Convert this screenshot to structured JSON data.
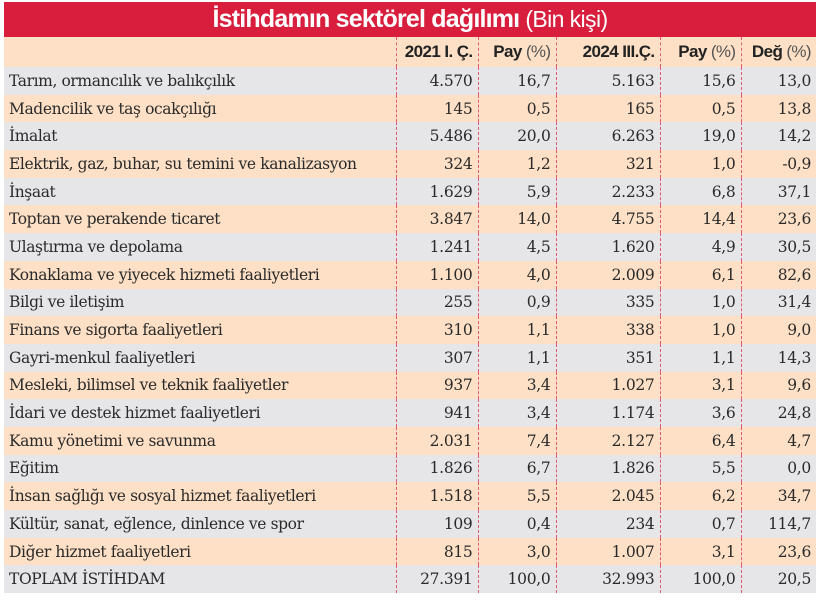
{
  "title": {
    "main": "İstihdamın sektörel dağılımı",
    "unit": "(Bin kişi)"
  },
  "headers": [
    {
      "bold": "2021 I. Ç.",
      "normal": ""
    },
    {
      "bold": "Pay",
      "normal": "(%)"
    },
    {
      "bold": "2024 III.Ç.",
      "normal": ""
    },
    {
      "bold": "Pay",
      "normal": "(%)"
    },
    {
      "bold": "Değ",
      "normal": "(%)"
    }
  ],
  "rows": [
    {
      "sector": "Tarım, ormancılık ve balıkçılık",
      "v2021": "4.570",
      "pay2021": "16,7",
      "v2024": "5.163",
      "pay2024": "15,6",
      "deg": "13,0"
    },
    {
      "sector": "Madencilik ve taş ocakçılığı",
      "v2021": "145",
      "pay2021": "0,5",
      "v2024": "165",
      "pay2024": "0,5",
      "deg": "13,8"
    },
    {
      "sector": "İmalat",
      "v2021": "5.486",
      "pay2021": "20,0",
      "v2024": "6.263",
      "pay2024": "19,0",
      "deg": "14,2"
    },
    {
      "sector": "Elektrik, gaz, buhar, su temini ve kanalizasyon",
      "v2021": "324",
      "pay2021": "1,2",
      "v2024": "321",
      "pay2024": "1,0",
      "deg": "-0,9"
    },
    {
      "sector": "İnşaat",
      "v2021": "1.629",
      "pay2021": "5,9",
      "v2024": "2.233",
      "pay2024": "6,8",
      "deg": "37,1"
    },
    {
      "sector": "Toptan ve perakende ticaret",
      "v2021": "3.847",
      "pay2021": "14,0",
      "v2024": "4.755",
      "pay2024": "14,4",
      "deg": "23,6"
    },
    {
      "sector": "Ulaştırma ve depolama",
      "v2021": "1.241",
      "pay2021": "4,5",
      "v2024": "1.620",
      "pay2024": "4,9",
      "deg": "30,5"
    },
    {
      "sector": "Konaklama ve yiyecek hizmeti faaliyetleri",
      "v2021": "1.100",
      "pay2021": "4,0",
      "v2024": "2.009",
      "pay2024": "6,1",
      "deg": "82,6"
    },
    {
      "sector": "Bilgi ve iletişim",
      "v2021": "255",
      "pay2021": "0,9",
      "v2024": "335",
      "pay2024": "1,0",
      "deg": "31,4"
    },
    {
      "sector": "Finans ve sigorta faaliyetleri",
      "v2021": "310",
      "pay2021": "1,1",
      "v2024": "338",
      "pay2024": "1,0",
      "deg": "9,0"
    },
    {
      "sector": "Gayri-menkul faaliyetleri",
      "v2021": "307",
      "pay2021": "1,1",
      "v2024": "351",
      "pay2024": "1,1",
      "deg": "14,3"
    },
    {
      "sector": "Mesleki, bilimsel ve teknik faaliyetler",
      "v2021": "937",
      "pay2021": "3,4",
      "v2024": "1.027",
      "pay2024": "3,1",
      "deg": "9,6"
    },
    {
      "sector": "İdari ve destek hizmet faaliyetleri",
      "v2021": "941",
      "pay2021": "3,4",
      "v2024": "1.174",
      "pay2024": "3,6",
      "deg": "24,8"
    },
    {
      "sector": "Kamu yönetimi ve savunma",
      "v2021": "2.031",
      "pay2021": "7,4",
      "v2024": "2.127",
      "pay2024": "6,4",
      "deg": "4,7"
    },
    {
      "sector": "Eğitim",
      "v2021": "1.826",
      "pay2021": "6,7",
      "v2024": "1.826",
      "pay2024": "5,5",
      "deg": "0,0"
    },
    {
      "sector": "İnsan sağlığı ve sosyal hizmet faaliyetleri",
      "v2021": "1.518",
      "pay2021": "5,5",
      "v2024": "2.045",
      "pay2024": "6,2",
      "deg": "34,7"
    },
    {
      "sector": "Kültür, sanat, eğlence, dinlence ve spor",
      "v2021": "109",
      "pay2021": "0,4",
      "v2024": "234",
      "pay2024": "0,7",
      "deg": "114,7"
    },
    {
      "sector": "Diğer hizmet faaliyetleri",
      "v2021": "815",
      "pay2021": "3,0",
      "v2024": "1.007",
      "pay2024": "3,1",
      "deg": "23,6"
    },
    {
      "sector": "TOPLAM İSTİHDAM",
      "v2021": "27.391",
      "pay2021": "100,0",
      "v2024": "32.993",
      "pay2024": "100,0",
      "deg": "20,5"
    }
  ],
  "colors": {
    "title_bg": "#d81e3c",
    "header_bg": "#fde0c6",
    "row_grey": "#e6e6e8",
    "row_peach": "#fde0c6",
    "separator": "#e05a74"
  }
}
